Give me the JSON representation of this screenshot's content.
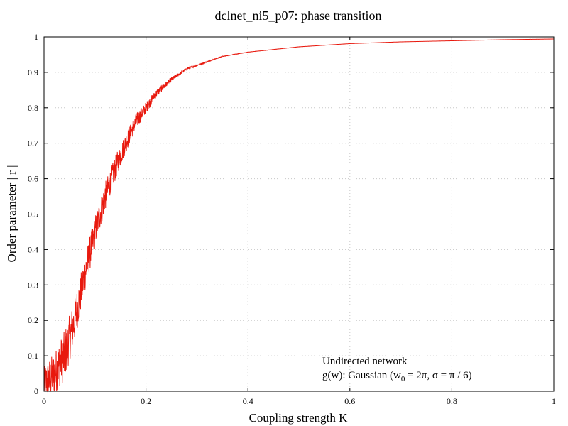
{
  "chart_data": {
    "type": "line",
    "title": "dclnet_ni5_p07: phase transition",
    "xlabel": "Coupling strength K",
    "ylabel": "Order parameter  | r |",
    "xlim": [
      0,
      1
    ],
    "ylim": [
      0,
      1
    ],
    "x_ticks": [
      "0",
      "0.2",
      "0.4",
      "0.6",
      "0.8",
      "1"
    ],
    "y_ticks": [
      "0",
      "0.1",
      "0.2",
      "0.3",
      "0.4",
      "0.5",
      "0.6",
      "0.7",
      "0.8",
      "0.9",
      "1"
    ],
    "grid": true,
    "series": [
      {
        "color": "#e8190e",
        "x": [
          0,
          0.02,
          0.04,
          0.06,
          0.08,
          0.1,
          0.12,
          0.14,
          0.16,
          0.18,
          0.2,
          0.22,
          0.25,
          0.28,
          0.3,
          0.35,
          0.4,
          0.5,
          0.6,
          0.7,
          0.8,
          0.9,
          1.0
        ],
        "y": [
          0.02,
          0.05,
          0.1,
          0.2,
          0.33,
          0.45,
          0.55,
          0.63,
          0.7,
          0.76,
          0.8,
          0.84,
          0.88,
          0.91,
          0.92,
          0.945,
          0.957,
          0.972,
          0.981,
          0.986,
          0.989,
          0.992,
          0.994
        ],
        "noise": [
          0.05,
          0.06,
          0.07,
          0.06,
          0.05,
          0.045,
          0.04,
          0.035,
          0.028,
          0.022,
          0.016,
          0.011,
          0.006,
          0.003,
          0.002,
          0.0008,
          0.0004,
          0.0002,
          0.0001,
          0.0001,
          0.0001,
          0.0001,
          0.0001
        ]
      }
    ],
    "annotations": {
      "line1": "Undirected network",
      "line2_prefix": "g(w): Gaussian (w",
      "line2_sub": "0",
      "line2_suffix": " = 2π, σ = π / 6)"
    }
  }
}
